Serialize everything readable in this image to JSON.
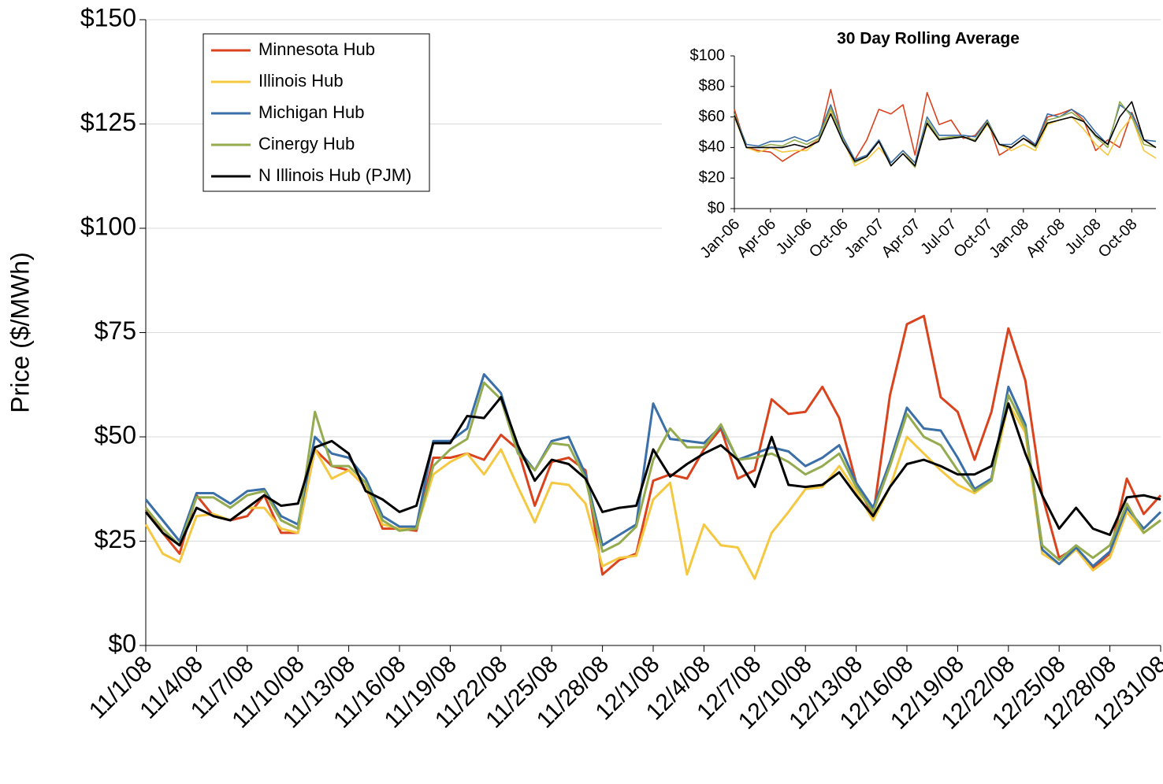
{
  "chart_data": [
    {
      "type": "line",
      "y_label": "Price ($/MWh)",
      "grid": true,
      "legend": "upper left",
      "categories": [
        "11/1/08",
        null,
        null,
        "11/4/08",
        null,
        null,
        "11/7/08",
        null,
        null,
        "11/10/08",
        null,
        null,
        "11/13/08",
        null,
        null,
        "11/16/08",
        null,
        null,
        "11/19/08",
        null,
        null,
        "11/22/08",
        null,
        null,
        "11/25/08",
        null,
        null,
        "11/28/08",
        null,
        null,
        "12/1/08",
        null,
        null,
        "12/4/08",
        null,
        null,
        "12/7/08",
        null,
        null,
        "12/10/08",
        null,
        null,
        "12/13/08",
        null,
        null,
        "12/16/08",
        null,
        null,
        "12/19/08",
        null,
        null,
        "12/22/08",
        null,
        null,
        "12/25/08",
        null,
        null,
        "12/28/08",
        null,
        null,
        "12/31/08"
      ],
      "ylim": [
        0,
        150
      ],
      "yticks": [
        {
          "value": 0,
          "label": "$0"
        },
        {
          "value": 25,
          "label": "$25"
        },
        {
          "value": 50,
          "label": "$50"
        },
        {
          "value": 75,
          "label": "$75"
        },
        {
          "value": 100,
          "label": "$100"
        },
        {
          "value": 125,
          "label": "$125"
        },
        {
          "value": 150,
          "label": "$150"
        }
      ],
      "series": [
        {
          "name": "Minnesota Hub",
          "color": "#d9441f",
          "values": [
            33,
            27,
            22,
            36,
            31,
            30,
            31,
            36,
            27,
            27,
            47,
            43,
            42,
            38,
            28,
            28,
            27.5,
            45,
            45,
            46,
            44.5,
            50.5,
            47,
            33.5,
            44,
            45,
            42,
            17,
            20.5,
            22,
            39.5,
            41,
            40,
            47,
            52,
            40,
            42,
            59,
            55.5,
            56,
            62,
            54.5,
            39,
            31,
            60,
            77,
            79,
            59.5,
            56,
            44.5,
            56,
            76,
            63.5,
            36,
            21,
            23.5,
            18.5,
            22,
            40,
            31.5,
            36
          ]
        },
        {
          "name": "Illinois Hub",
          "color": "#f5c842",
          "values": [
            29,
            22,
            20,
            31,
            31.5,
            30,
            33,
            33,
            28,
            27,
            47,
            40,
            42,
            38,
            29,
            28,
            28,
            41,
            44,
            46,
            41,
            47,
            38,
            29.5,
            39,
            38.5,
            34,
            19,
            21,
            21.5,
            35,
            39,
            17,
            29,
            24,
            23.5,
            16,
            27,
            32,
            37.5,
            38,
            43,
            37,
            30,
            38,
            50,
            46,
            42,
            38.5,
            36.5,
            39.5,
            58,
            51,
            22,
            19.5,
            23,
            18,
            21,
            32,
            27,
            30
          ]
        },
        {
          "name": "Michigan Hub",
          "color": "#3a6fa8",
          "values": [
            35,
            30,
            25,
            36.5,
            36.5,
            34,
            37,
            37.5,
            31,
            29,
            50,
            46,
            45,
            40,
            31,
            28.5,
            28.5,
            49,
            49,
            52,
            65,
            60.5,
            47,
            42,
            49,
            50,
            41,
            24,
            26.5,
            29,
            58,
            49.5,
            49,
            48.5,
            52.5,
            44.5,
            46,
            47.5,
            46.5,
            43,
            45,
            48,
            39,
            33,
            44,
            57,
            52,
            51.5,
            45,
            37.5,
            40,
            62,
            53,
            23,
            19.5,
            23.5,
            19,
            22.5,
            33,
            28,
            32
          ]
        },
        {
          "name": "Cinergy Hub",
          "color": "#94ab4f",
          "values": [
            33,
            28,
            24,
            35.5,
            35.5,
            33,
            36,
            37,
            30,
            28,
            56,
            43,
            43,
            39,
            30,
            27.5,
            28,
            43,
            47,
            49.5,
            63,
            59,
            46,
            42,
            48.5,
            48,
            40,
            22.5,
            24.5,
            28.5,
            44.5,
            52,
            47.5,
            47.5,
            53,
            44.5,
            45,
            46,
            44,
            41,
            43,
            46,
            38,
            32,
            43,
            55.5,
            50,
            48,
            42,
            37,
            39.5,
            60,
            52,
            24,
            20.5,
            24,
            21,
            24,
            34,
            27,
            30
          ]
        },
        {
          "name": "N Illinois Hub (PJM)",
          "color": "#000000",
          "values": [
            32,
            27,
            24,
            33,
            31,
            30,
            33,
            36,
            33.5,
            34,
            47.5,
            49,
            46,
            37,
            35,
            32,
            33.5,
            48.5,
            48.5,
            55,
            54.5,
            59.5,
            48,
            39.5,
            44.5,
            43.5,
            40,
            32,
            33,
            33.5,
            47,
            40.5,
            43.5,
            46,
            48,
            44.5,
            38,
            50,
            38.5,
            38,
            38.5,
            41.5,
            36,
            31,
            38,
            43.5,
            44.5,
            43,
            41,
            41,
            43,
            58,
            46,
            36,
            28,
            33,
            28,
            26.5,
            35.5,
            36,
            35
          ]
        }
      ]
    },
    {
      "type": "line",
      "title": "30 Day Rolling Average",
      "grid": false,
      "categories": [
        "Jan-06",
        null,
        null,
        "Apr-06",
        null,
        null,
        "Jul-06",
        null,
        null,
        "Oct-06",
        null,
        null,
        "Jan-07",
        null,
        null,
        "Apr-07",
        null,
        null,
        "Jul-07",
        null,
        null,
        "Oct-07",
        null,
        null,
        "Jan-08",
        null,
        null,
        "Apr-08",
        null,
        null,
        "Jul-08",
        null,
        null,
        "Oct-08",
        null,
        null
      ],
      "ylim": [
        0,
        100
      ],
      "yticks": [
        {
          "value": 0,
          "label": "$0"
        },
        {
          "value": 20,
          "label": "$20"
        },
        {
          "value": 40,
          "label": "$40"
        },
        {
          "value": 60,
          "label": "$60"
        },
        {
          "value": 80,
          "label": "$80"
        },
        {
          "value": 100,
          "label": "$100"
        }
      ],
      "series": [
        {
          "color": "#d9441f",
          "values": [
            65,
            40,
            38,
            37,
            31,
            36,
            40,
            45,
            78,
            45,
            32,
            45,
            65,
            62,
            68,
            35,
            76,
            55,
            58,
            46,
            48,
            58,
            35,
            40,
            46,
            42,
            60,
            62,
            65,
            58,
            38,
            45,
            40,
            63,
            45,
            40
          ]
        },
        {
          "color": "#f5c842",
          "values": [
            60,
            40,
            37,
            40,
            37,
            38,
            38,
            45,
            64,
            45,
            28,
            32,
            40,
            30,
            38,
            28,
            55,
            45,
            46,
            47,
            44,
            55,
            42,
            38,
            42,
            38,
            55,
            58,
            60,
            52,
            42,
            35,
            50,
            60,
            38,
            33
          ]
        },
        {
          "color": "#3a6fa8",
          "values": [
            62,
            42,
            41,
            44,
            44,
            47,
            44,
            48,
            68,
            47,
            32,
            35,
            45,
            30,
            38,
            30,
            60,
            48,
            48,
            48,
            47,
            58,
            42,
            42,
            48,
            42,
            62,
            60,
            65,
            60,
            50,
            42,
            68,
            62,
            45,
            44
          ]
        },
        {
          "color": "#94ab4f",
          "values": [
            62,
            40,
            40,
            42,
            41,
            45,
            42,
            46,
            66,
            45,
            30,
            34,
            44,
            28,
            36,
            27,
            58,
            46,
            47,
            47,
            45,
            57,
            42,
            40,
            46,
            40,
            58,
            60,
            63,
            57,
            47,
            40,
            70,
            60,
            42,
            40
          ]
        },
        {
          "color": "#000000",
          "values": [
            61,
            40,
            40,
            40,
            40,
            42,
            40,
            44,
            62,
            44,
            31,
            34,
            44,
            28,
            36,
            28,
            56,
            45,
            46,
            47,
            44,
            56,
            42,
            40,
            46,
            41,
            56,
            58,
            60,
            57,
            48,
            42,
            60,
            70,
            45,
            40
          ]
        }
      ]
    }
  ]
}
